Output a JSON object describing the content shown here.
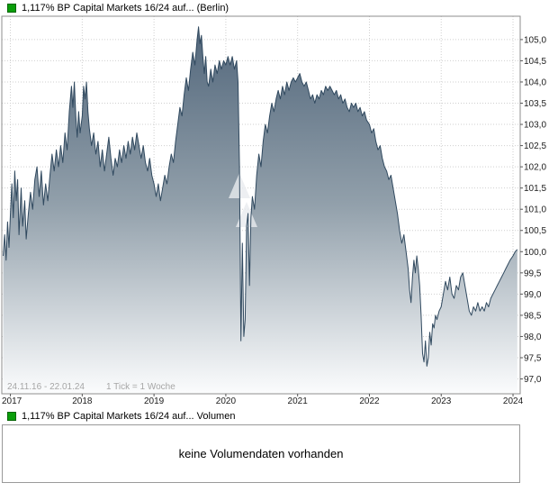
{
  "chart_data": {
    "type": "area",
    "title": "1,117% BP Capital Markets 16/24 auf... (Berlin)",
    "footer_left": "24.11.16 - 22.01.24",
    "footer_tick": "1 Tick = 1 Woche",
    "x_ticks": [
      2017,
      2018,
      2019,
      2020,
      2021,
      2022,
      2023,
      2024
    ],
    "x_tick_labels": [
      "2017",
      "2018",
      "2019",
      "2020",
      "2021",
      "2022",
      "2023",
      "2024"
    ],
    "y_ticks": [
      105.0,
      104.5,
      104.0,
      103.5,
      103.0,
      102.5,
      102.0,
      101.5,
      101.0,
      100.5,
      100.0,
      99.5,
      99.0,
      98.5,
      98.0,
      97.5,
      97.0
    ],
    "y_tick_labels": [
      "105,0",
      "104,5",
      "104,0",
      "103,5",
      "103,0",
      "102,5",
      "102,0",
      "101,5",
      "101,0",
      "100,5",
      "100,0",
      "99,5",
      "99,0",
      "98,5",
      "98,0",
      "97,5",
      "97,0"
    ],
    "xlim": [
      2016.88,
      2024.1
    ],
    "ylim": [
      96.65,
      105.55
    ],
    "grid": true,
    "legend_position": "top-left",
    "legend_color": "#0a9e0a",
    "line_color": "#30495f",
    "area_top_color": "#4e6378",
    "area_mid_color": "#92a0ab",
    "area_bottom_color": "#fbfcfd",
    "watermark_color": "#e9ecef",
    "series": [
      {
        "name": "1,117% BP Capital Markets 16/24 auf... (Berlin)",
        "points": [
          [
            2016.9,
            99.9
          ],
          [
            2016.92,
            100.4
          ],
          [
            2016.94,
            99.8
          ],
          [
            2016.96,
            100.7
          ],
          [
            2016.98,
            100.1
          ],
          [
            2017.0,
            100.9
          ],
          [
            2017.02,
            101.6
          ],
          [
            2017.04,
            100.8
          ],
          [
            2017.06,
            101.9
          ],
          [
            2017.08,
            101.2
          ],
          [
            2017.1,
            101.7
          ],
          [
            2017.12,
            100.4
          ],
          [
            2017.15,
            101.5
          ],
          [
            2017.17,
            100.6
          ],
          [
            2017.2,
            101.2
          ],
          [
            2017.22,
            100.3
          ],
          [
            2017.25,
            100.9
          ],
          [
            2017.28,
            101.4
          ],
          [
            2017.31,
            101.0
          ],
          [
            2017.34,
            101.7
          ],
          [
            2017.37,
            102.0
          ],
          [
            2017.4,
            101.3
          ],
          [
            2017.43,
            101.9
          ],
          [
            2017.46,
            101.1
          ],
          [
            2017.49,
            101.6
          ],
          [
            2017.52,
            101.2
          ],
          [
            2017.55,
            101.8
          ],
          [
            2017.58,
            102.3
          ],
          [
            2017.61,
            101.9
          ],
          [
            2017.64,
            102.4
          ],
          [
            2017.67,
            102.0
          ],
          [
            2017.7,
            102.5
          ],
          [
            2017.73,
            102.1
          ],
          [
            2017.76,
            102.8
          ],
          [
            2017.79,
            102.4
          ],
          [
            2017.82,
            103.3
          ],
          [
            2017.85,
            103.9
          ],
          [
            2017.87,
            103.4
          ],
          [
            2017.89,
            104.0
          ],
          [
            2017.91,
            103.2
          ],
          [
            2017.93,
            102.7
          ],
          [
            2017.95,
            103.3
          ],
          [
            2017.97,
            102.8
          ],
          [
            2018.0,
            103.2
          ],
          [
            2018.02,
            103.9
          ],
          [
            2018.04,
            103.6
          ],
          [
            2018.06,
            104.0
          ],
          [
            2018.08,
            103.3
          ],
          [
            2018.1,
            102.9
          ],
          [
            2018.13,
            102.5
          ],
          [
            2018.16,
            102.8
          ],
          [
            2018.19,
            102.3
          ],
          [
            2018.22,
            102.6
          ],
          [
            2018.25,
            102.0
          ],
          [
            2018.28,
            102.4
          ],
          [
            2018.31,
            101.9
          ],
          [
            2018.34,
            102.3
          ],
          [
            2018.37,
            102.7
          ],
          [
            2018.4,
            102.2
          ],
          [
            2018.43,
            101.8
          ],
          [
            2018.46,
            102.2
          ],
          [
            2018.49,
            102.0
          ],
          [
            2018.52,
            102.4
          ],
          [
            2018.55,
            102.1
          ],
          [
            2018.58,
            102.5
          ],
          [
            2018.61,
            102.2
          ],
          [
            2018.64,
            102.6
          ],
          [
            2018.67,
            102.3
          ],
          [
            2018.7,
            102.7
          ],
          [
            2018.73,
            102.4
          ],
          [
            2018.76,
            102.8
          ],
          [
            2018.79,
            102.5
          ],
          [
            2018.82,
            102.2
          ],
          [
            2018.85,
            102.5
          ],
          [
            2018.88,
            102.1
          ],
          [
            2018.91,
            101.9
          ],
          [
            2018.94,
            102.2
          ],
          [
            2018.97,
            101.8
          ],
          [
            2019.0,
            101.6
          ],
          [
            2019.03,
            101.3
          ],
          [
            2019.06,
            101.6
          ],
          [
            2019.09,
            101.2
          ],
          [
            2019.12,
            101.5
          ],
          [
            2019.15,
            101.8
          ],
          [
            2019.18,
            101.6
          ],
          [
            2019.21,
            102.0
          ],
          [
            2019.24,
            102.3
          ],
          [
            2019.27,
            102.1
          ],
          [
            2019.3,
            102.6
          ],
          [
            2019.33,
            103.0
          ],
          [
            2019.36,
            103.4
          ],
          [
            2019.39,
            103.2
          ],
          [
            2019.42,
            103.7
          ],
          [
            2019.45,
            104.1
          ],
          [
            2019.48,
            103.8
          ],
          [
            2019.51,
            104.3
          ],
          [
            2019.54,
            104.7
          ],
          [
            2019.57,
            104.4
          ],
          [
            2019.6,
            105.0
          ],
          [
            2019.62,
            105.3
          ],
          [
            2019.64,
            104.9
          ],
          [
            2019.66,
            105.1
          ],
          [
            2019.68,
            104.6
          ],
          [
            2019.7,
            104.2
          ],
          [
            2019.72,
            104.6
          ],
          [
            2019.74,
            104.0
          ],
          [
            2019.76,
            103.9
          ],
          [
            2019.79,
            104.3
          ],
          [
            2019.82,
            104.0
          ],
          [
            2019.85,
            104.4
          ],
          [
            2019.88,
            104.2
          ],
          [
            2019.91,
            104.5
          ],
          [
            2019.94,
            104.3
          ],
          [
            2019.97,
            104.5
          ],
          [
            2020.0,
            104.4
          ],
          [
            2020.03,
            104.6
          ],
          [
            2020.06,
            104.4
          ],
          [
            2020.09,
            104.6
          ],
          [
            2020.12,
            104.3
          ],
          [
            2020.15,
            104.5
          ],
          [
            2020.17,
            104.0
          ],
          [
            2020.19,
            102.0
          ],
          [
            2020.21,
            97.9
          ],
          [
            2020.23,
            100.2
          ],
          [
            2020.25,
            98.0
          ],
          [
            2020.27,
            98.4
          ],
          [
            2020.29,
            100.6
          ],
          [
            2020.31,
            100.9
          ],
          [
            2020.33,
            99.2
          ],
          [
            2020.35,
            100.8
          ],
          [
            2020.37,
            101.3
          ],
          [
            2020.4,
            101.0
          ],
          [
            2020.43,
            101.8
          ],
          [
            2020.46,
            102.3
          ],
          [
            2020.49,
            102.0
          ],
          [
            2020.52,
            102.6
          ],
          [
            2020.55,
            103.0
          ],
          [
            2020.58,
            102.8
          ],
          [
            2020.61,
            103.2
          ],
          [
            2020.64,
            103.5
          ],
          [
            2020.67,
            103.3
          ],
          [
            2020.7,
            103.6
          ],
          [
            2020.73,
            103.8
          ],
          [
            2020.76,
            103.6
          ],
          [
            2020.79,
            103.9
          ],
          [
            2020.82,
            103.7
          ],
          [
            2020.85,
            104.0
          ],
          [
            2020.88,
            103.8
          ],
          [
            2020.91,
            104.0
          ],
          [
            2020.94,
            104.1
          ],
          [
            2020.97,
            104.0
          ],
          [
            2021.0,
            104.1
          ],
          [
            2021.03,
            104.2
          ],
          [
            2021.06,
            104.0
          ],
          [
            2021.09,
            103.9
          ],
          [
            2021.12,
            104.0
          ],
          [
            2021.15,
            103.8
          ],
          [
            2021.18,
            103.6
          ],
          [
            2021.21,
            103.7
          ],
          [
            2021.24,
            103.5
          ],
          [
            2021.27,
            103.7
          ],
          [
            2021.3,
            103.6
          ],
          [
            2021.33,
            103.8
          ],
          [
            2021.36,
            103.7
          ],
          [
            2021.39,
            103.9
          ],
          [
            2021.42,
            103.8
          ],
          [
            2021.45,
            103.9
          ],
          [
            2021.48,
            103.8
          ],
          [
            2021.51,
            103.7
          ],
          [
            2021.54,
            103.8
          ],
          [
            2021.57,
            103.6
          ],
          [
            2021.6,
            103.7
          ],
          [
            2021.63,
            103.5
          ],
          [
            2021.66,
            103.6
          ],
          [
            2021.69,
            103.4
          ],
          [
            2021.72,
            103.3
          ],
          [
            2021.75,
            103.5
          ],
          [
            2021.78,
            103.4
          ],
          [
            2021.81,
            103.5
          ],
          [
            2021.84,
            103.3
          ],
          [
            2021.87,
            103.4
          ],
          [
            2021.9,
            103.2
          ],
          [
            2021.93,
            103.3
          ],
          [
            2021.96,
            103.1
          ],
          [
            2022.0,
            103.0
          ],
          [
            2022.03,
            102.8
          ],
          [
            2022.06,
            102.9
          ],
          [
            2022.09,
            102.6
          ],
          [
            2022.12,
            102.4
          ],
          [
            2022.15,
            102.5
          ],
          [
            2022.18,
            102.2
          ],
          [
            2022.21,
            102.0
          ],
          [
            2022.24,
            101.9
          ],
          [
            2022.27,
            101.7
          ],
          [
            2022.3,
            101.8
          ],
          [
            2022.33,
            101.5
          ],
          [
            2022.36,
            101.2
          ],
          [
            2022.39,
            100.9
          ],
          [
            2022.42,
            100.5
          ],
          [
            2022.45,
            100.2
          ],
          [
            2022.48,
            100.4
          ],
          [
            2022.51,
            100.0
          ],
          [
            2022.54,
            99.6
          ],
          [
            2022.56,
            99.1
          ],
          [
            2022.58,
            98.8
          ],
          [
            2022.6,
            99.4
          ],
          [
            2022.62,
            99.8
          ],
          [
            2022.64,
            99.5
          ],
          [
            2022.66,
            99.9
          ],
          [
            2022.68,
            99.6
          ],
          [
            2022.7,
            99.2
          ],
          [
            2022.72,
            98.5
          ],
          [
            2022.74,
            97.6
          ],
          [
            2022.76,
            97.4
          ],
          [
            2022.78,
            97.9
          ],
          [
            2022.8,
            97.3
          ],
          [
            2022.82,
            97.5
          ],
          [
            2022.84,
            98.1
          ],
          [
            2022.86,
            97.8
          ],
          [
            2022.88,
            98.3
          ],
          [
            2022.9,
            98.2
          ],
          [
            2022.92,
            98.5
          ],
          [
            2022.94,
            98.4
          ],
          [
            2022.97,
            98.6
          ],
          [
            2023.0,
            98.7
          ],
          [
            2023.03,
            99.0
          ],
          [
            2023.06,
            99.3
          ],
          [
            2023.09,
            99.1
          ],
          [
            2023.12,
            99.4
          ],
          [
            2023.15,
            99.0
          ],
          [
            2023.18,
            98.9
          ],
          [
            2023.21,
            99.2
          ],
          [
            2023.24,
            99.1
          ],
          [
            2023.27,
            99.4
          ],
          [
            2023.3,
            99.5
          ],
          [
            2023.33,
            99.2
          ],
          [
            2023.36,
            98.9
          ],
          [
            2023.39,
            98.6
          ],
          [
            2023.42,
            98.5
          ],
          [
            2023.45,
            98.7
          ],
          [
            2023.48,
            98.6
          ],
          [
            2023.51,
            98.8
          ],
          [
            2023.54,
            98.6
          ],
          [
            2023.57,
            98.7
          ],
          [
            2023.6,
            98.6
          ],
          [
            2023.63,
            98.8
          ],
          [
            2023.66,
            98.7
          ],
          [
            2023.69,
            98.9
          ],
          [
            2023.72,
            99.0
          ],
          [
            2023.75,
            99.1
          ],
          [
            2023.78,
            99.2
          ],
          [
            2023.81,
            99.3
          ],
          [
            2023.84,
            99.4
          ],
          [
            2023.87,
            99.5
          ],
          [
            2023.9,
            99.6
          ],
          [
            2023.93,
            99.7
          ],
          [
            2023.96,
            99.8
          ],
          [
            2024.0,
            99.9
          ],
          [
            2024.03,
            100.0
          ],
          [
            2024.06,
            100.05
          ]
        ]
      }
    ]
  },
  "volume_panel": {
    "legend": "1,117% BP Capital Markets 16/24 auf... Volumen",
    "message": "keine Volumendaten vorhanden"
  }
}
